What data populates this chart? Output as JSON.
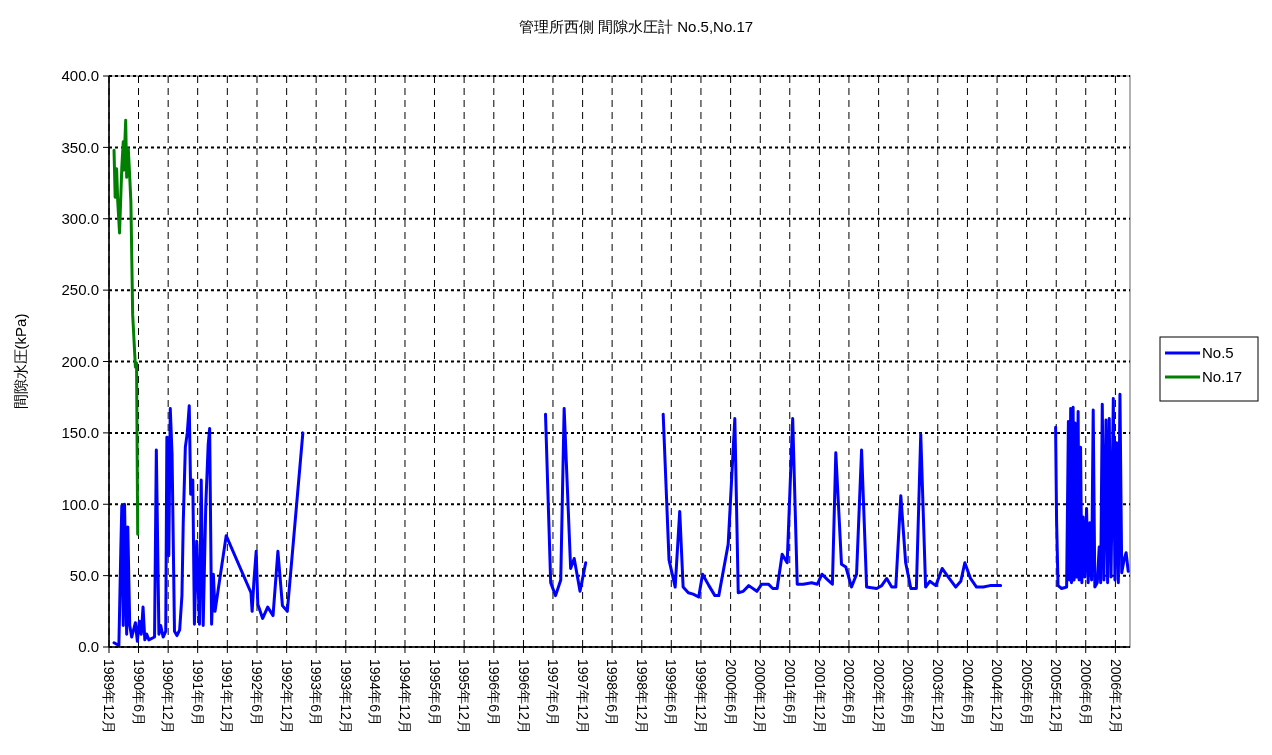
{
  "chart_data": {
    "type": "line",
    "title": "管理所西側 間隙水圧計 No.5,No.17",
    "ylabel": "間隙水圧(kPa)",
    "xlim": [
      "1989-12-01",
      "2007-03-01"
    ],
    "xticks": [
      {
        "value": "1989-12-01",
        "label": "1989年12月"
      },
      {
        "value": "1990-06-01",
        "label": "1990年6月"
      },
      {
        "value": "1990-12-01",
        "label": "1990年12月"
      },
      {
        "value": "1991-06-01",
        "label": "1991年6月"
      },
      {
        "value": "1991-12-01",
        "label": "1991年12月"
      },
      {
        "value": "1992-06-01",
        "label": "1992年6月"
      },
      {
        "value": "1992-12-01",
        "label": "1992年12月"
      },
      {
        "value": "1993-06-01",
        "label": "1993年6月"
      },
      {
        "value": "1993-12-01",
        "label": "1993年12月"
      },
      {
        "value": "1994-06-01",
        "label": "1994年6月"
      },
      {
        "value": "1994-12-01",
        "label": "1994年12月"
      },
      {
        "value": "1995-06-01",
        "label": "1995年6月"
      },
      {
        "value": "1995-12-01",
        "label": "1995年12月"
      },
      {
        "value": "1996-06-01",
        "label": "1996年6月"
      },
      {
        "value": "1996-12-01",
        "label": "1996年12月"
      },
      {
        "value": "1997-06-01",
        "label": "1997年6月"
      },
      {
        "value": "1997-12-01",
        "label": "1997年12月"
      },
      {
        "value": "1998-06-01",
        "label": "1998年6月"
      },
      {
        "value": "1998-12-01",
        "label": "1998年12月"
      },
      {
        "value": "1999-06-01",
        "label": "1999年6月"
      },
      {
        "value": "1999-12-01",
        "label": "1999年12月"
      },
      {
        "value": "2000-06-01",
        "label": "2000年6月"
      },
      {
        "value": "2000-12-01",
        "label": "2000年12月"
      },
      {
        "value": "2001-06-01",
        "label": "2001年6月"
      },
      {
        "value": "2001-12-01",
        "label": "2001年12月"
      },
      {
        "value": "2002-06-01",
        "label": "2002年6月"
      },
      {
        "value": "2002-12-01",
        "label": "2002年12月"
      },
      {
        "value": "2003-06-01",
        "label": "2003年6月"
      },
      {
        "value": "2003-12-01",
        "label": "2003年12月"
      },
      {
        "value": "2004-06-01",
        "label": "2004年6月"
      },
      {
        "value": "2004-12-01",
        "label": "2004年12月"
      },
      {
        "value": "2005-06-01",
        "label": "2005年6月"
      },
      {
        "value": "2005-12-01",
        "label": "2005年12月"
      },
      {
        "value": "2006-06-01",
        "label": "2006年6月"
      },
      {
        "value": "2006-12-01",
        "label": "2006年12月"
      }
    ],
    "ylim": [
      0,
      400
    ],
    "yticks": [
      {
        "value": 0,
        "label": "0.0"
      },
      {
        "value": 50,
        "label": "50.0"
      },
      {
        "value": 100,
        "label": "100.0"
      },
      {
        "value": 150,
        "label": "150.0"
      },
      {
        "value": 200,
        "label": "200.0"
      },
      {
        "value": 250,
        "label": "250.0"
      },
      {
        "value": 300,
        "label": "300.0"
      },
      {
        "value": 350,
        "label": "350.0"
      },
      {
        "value": 400,
        "label": "400.0"
      }
    ],
    "grid": true,
    "legend": "right",
    "marker": "none",
    "line_style": "solid",
    "series": [
      {
        "name": "No.5",
        "color": "#0000ff",
        "x": [
          "1990-01-01",
          "1990-01-31",
          "1990-02-12",
          "1990-02-18",
          "1990-02-27",
          "1990-03-07",
          "1990-03-20",
          "1990-03-27",
          "1990-04-08",
          "1990-04-20",
          "1990-05-13",
          "1990-05-25",
          "1990-06-06",
          "1990-06-18",
          "1990-06-29",
          "1990-07-10",
          "1990-07-22",
          "1990-08-04",
          "1990-09-08",
          "1990-09-19",
          "1990-10-05",
          "1990-10-16",
          "1990-10-31",
          "1990-11-16",
          "1990-11-23",
          "1990-12-05",
          "1990-12-14",
          "1990-12-25",
          "1991-01-09",
          "1991-01-24",
          "1991-02-10",
          "1991-02-24",
          "1991-03-04",
          "1991-03-17",
          "1991-03-29",
          "1991-04-10",
          "1991-04-19",
          "1991-05-02",
          "1991-05-12",
          "1991-05-26",
          "1991-06-12",
          "1991-06-23",
          "1991-07-05",
          "1991-07-21",
          "1991-08-05",
          "1991-08-14",
          "1991-08-26",
          "1991-09-06",
          "1991-09-16",
          "1991-11-24",
          "1992-04-25",
          "1992-05-02",
          "1992-05-13",
          "1992-05-27",
          "1992-06-06",
          "1992-07-06",
          "1992-08-06",
          "1992-09-08",
          "1992-10-08",
          "1992-11-05",
          "1992-12-05",
          "1993-03-11",
          "1995-06-01",
          "1997-04-16",
          "1997-05-18",
          "1997-06-17",
          "1997-07-19",
          "1997-08-09",
          "1997-09-18",
          "1997-10-10",
          "1997-11-15",
          "1997-12-20",
          "1998-08-01",
          "1999-04-12",
          "1999-05-18",
          "1999-06-25",
          "1999-07-23",
          "1999-08-13",
          "1999-09-14",
          "1999-10-14",
          "1999-11-17",
          "1999-12-11",
          "2000-01-19",
          "2000-02-25",
          "2000-03-20",
          "2000-05-17",
          "2000-06-27",
          "2000-07-18",
          "2000-08-18",
          "2000-09-21",
          "2000-11-10",
          "2000-12-10",
          "2001-01-20",
          "2001-02-16",
          "2001-03-15",
          "2001-04-15",
          "2001-05-16",
          "2001-06-19",
          "2001-07-17",
          "2001-08-23",
          "2001-10-14",
          "2001-11-18",
          "2001-12-17",
          "2002-01-21",
          "2002-02-19",
          "2002-03-12",
          "2002-04-16",
          "2002-05-13",
          "2002-06-17",
          "2002-07-18",
          "2002-08-18",
          "2002-09-18",
          "2002-11-19",
          "2002-12-20",
          "2003-01-20",
          "2003-02-20",
          "2003-03-17",
          "2003-04-17",
          "2003-05-17",
          "2003-06-18",
          "2003-07-22",
          "2003-08-18",
          "2003-09-17",
          "2003-10-13",
          "2003-11-19",
          "2003-12-28",
          "2004-02-04",
          "2004-03-21",
          "2004-04-21",
          "2004-05-16",
          "2004-06-20",
          "2004-07-27",
          "2004-09-07",
          "2004-10-18",
          "2004-11-25",
          "2004-12-23",
          "2005-06-01",
          "2005-11-27",
          "2005-12-03",
          "2005-12-12",
          "2006-01-03",
          "2006-02-03",
          "2006-02-14",
          "2006-02-20",
          "2006-02-28",
          "2006-03-05",
          "2006-03-15",
          "2006-03-21",
          "2006-03-27",
          "2006-04-05",
          "2006-04-15",
          "2006-04-21",
          "2006-04-30",
          "2006-05-08",
          "2006-05-16",
          "2006-05-26",
          "2006-06-06",
          "2006-06-16",
          "2006-06-26",
          "2006-07-07",
          "2006-07-17",
          "2006-07-27",
          "2006-08-11",
          "2006-08-23",
          "2006-09-01",
          "2006-09-11",
          "2006-09-21",
          "2006-10-04",
          "2006-10-14",
          "2006-10-24",
          "2006-11-04",
          "2006-11-18",
          "2006-11-28",
          "2006-12-09",
          "2006-12-19",
          "2006-12-29",
          "2007-01-09",
          "2007-01-23",
          "2007-02-05",
          "2007-02-18"
        ],
        "values": [
          3,
          1,
          69,
          99,
          15,
          100,
          9,
          84,
          15,
          7,
          17,
          4,
          18,
          9,
          28,
          5,
          9,
          5,
          7,
          138,
          9,
          15,
          7,
          11,
          147,
          64,
          167,
          135,
          11,
          8,
          12,
          36,
          87,
          140,
          150,
          169,
          107,
          117,
          16,
          74,
          16,
          117,
          15,
          99,
          142,
          153,
          16,
          51,
          25,
          78,
          38,
          25,
          46,
          67,
          30,
          20,
          28,
          22,
          67,
          29,
          25,
          150,
          null,
          163,
          45,
          36,
          47,
          167,
          55,
          62,
          39,
          59,
          null,
          163,
          61,
          42,
          95,
          42,
          38,
          37,
          35,
          51,
          43,
          36,
          36,
          72,
          160,
          38,
          39,
          43,
          39,
          44,
          44,
          41,
          41,
          65,
          59,
          160,
          44,
          44,
          45,
          44,
          51,
          47,
          44,
          136,
          58,
          56,
          42,
          51,
          138,
          42,
          41,
          43,
          48,
          42,
          42,
          106,
          59,
          41,
          41,
          149,
          42,
          46,
          43,
          55,
          49,
          42,
          46,
          59,
          48,
          42,
          42,
          43,
          43,
          43,
          null,
          154,
          89,
          43,
          41,
          42,
          158,
          47,
          167,
          45,
          168,
          47,
          157,
          49,
          165,
          47,
          140,
          45,
          91,
          49,
          97,
          45,
          87,
          47,
          166,
          42,
          45,
          70,
          45,
          170,
          47,
          159,
          45,
          160,
          49,
          174,
          47,
          143,
          45,
          177,
          52,
          61,
          66,
          53
        ]
      },
      {
        "name": "No.17",
        "color": "#008000",
        "x": [
          "1990-01-01",
          "1990-01-08",
          "1990-01-17",
          "1990-01-24",
          "1990-02-04",
          "1990-02-18",
          "1990-02-27",
          "1990-03-02",
          "1990-03-14",
          "1990-03-20",
          "1990-03-30",
          "1990-04-08",
          "1990-04-15",
          "1990-04-26",
          "1990-05-13",
          "1990-05-20",
          "1990-05-27"
        ],
        "values": [
          348,
          315,
          335,
          312,
          290,
          336,
          354,
          334,
          369,
          329,
          349,
          329,
          312,
          233,
          196,
          199,
          79
        ]
      }
    ]
  }
}
